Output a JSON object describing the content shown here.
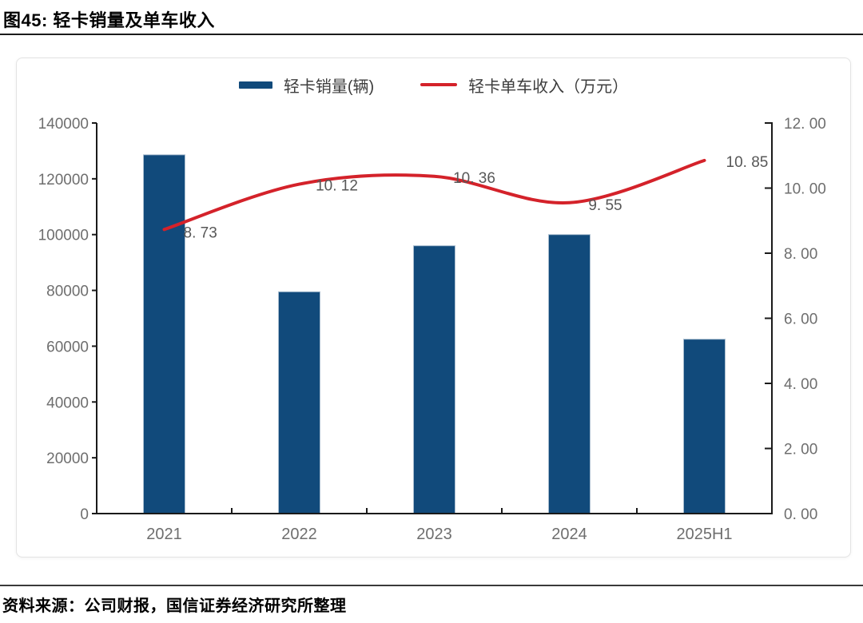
{
  "figure": {
    "title": "图45: 轻卡销量及单车收入",
    "source": "资料来源：公司财报，国信证券经济研究所整理"
  },
  "legend": [
    {
      "label": "轻卡销量(辆)",
      "type": "bar",
      "color": "#114A7B"
    },
    {
      "label": "轻卡单车收入（万元）",
      "type": "line",
      "color": "#D4222A"
    }
  ],
  "chart_data": {
    "type": "combo",
    "title": "轻卡销量及单车收入",
    "categories": [
      "2021",
      "2022",
      "2023",
      "2024",
      "2025H1"
    ],
    "series": [
      {
        "name": "轻卡销量(辆)",
        "type": "bar",
        "axis": "left",
        "color": "#114A7B",
        "values": [
          128600,
          79500,
          96000,
          100000,
          62500
        ]
      },
      {
        "name": "轻卡单车收入（万元）",
        "type": "line",
        "axis": "right",
        "color": "#D4222A",
        "values": [
          8.73,
          10.12,
          10.36,
          9.55,
          10.85
        ],
        "labels": [
          "8. 73",
          "10. 12",
          "10. 36",
          "9. 55",
          "10. 85"
        ]
      }
    ],
    "left_axis": {
      "min": 0,
      "max": 140000,
      "step": 20000,
      "tick_labels": [
        "0",
        "20000",
        "40000",
        "60000",
        "80000",
        "100000",
        "120000",
        "140000"
      ]
    },
    "right_axis": {
      "min": 0,
      "max": 12,
      "step": 2,
      "tick_labels": [
        "0. 00",
        "2. 00",
        "4. 00",
        "6. 00",
        "8. 00",
        "10. 00",
        "12. 00"
      ]
    },
    "grid": false,
    "legend_position": "top"
  },
  "colors": {
    "bar": "#114A7B",
    "bar_edge": "#a9bdcf",
    "line": "#D4222A",
    "axis": "#1a1a1a",
    "tick_text": "#6e6e6e",
    "data_label_text": "#575757",
    "legend_text": "#3c3c3c"
  }
}
